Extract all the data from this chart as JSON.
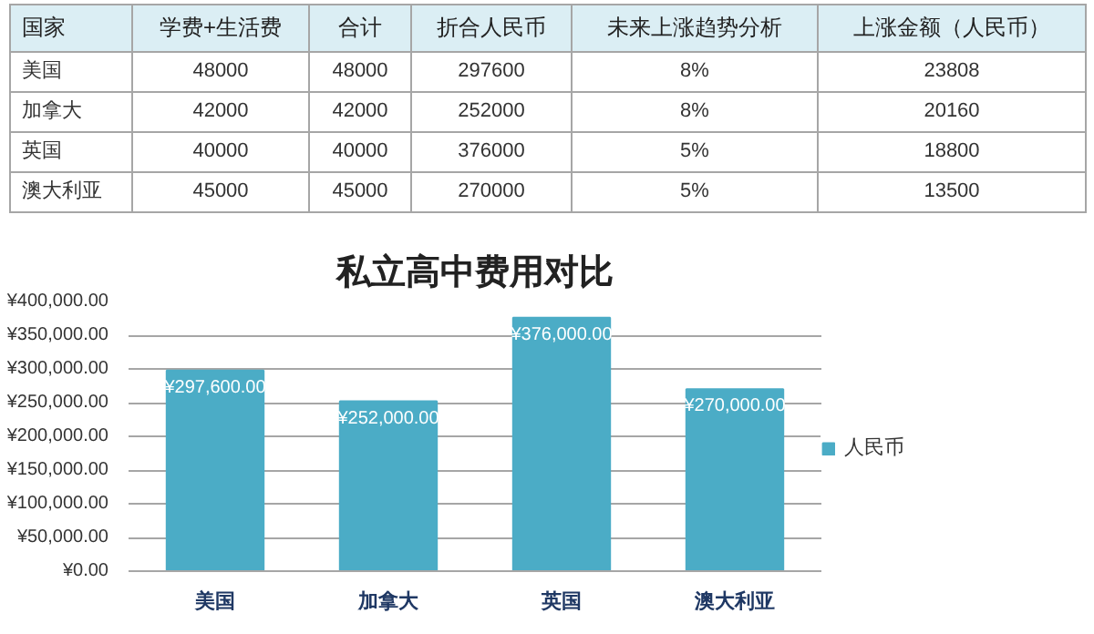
{
  "chart_data": [
    {
      "type": "other",
      "categories": [
        "国家",
        "学费+生活费",
        "合计",
        "折合人民币",
        "未来上涨趋势分析",
        "上涨金额（人民币）"
      ],
      "cell_labels": [
        [
          "美国",
          "48000",
          "48000",
          "297600",
          "8%",
          "23808"
        ],
        [
          "加拿大",
          "42000",
          "42000",
          "252000",
          "8%",
          "20160"
        ],
        [
          "英国",
          "40000",
          "40000",
          "376000",
          "5%",
          "18800"
        ],
        [
          "澳大利亚",
          "45000",
          "45000",
          "270000",
          "5%",
          "13500"
        ]
      ]
    },
    {
      "type": "bar",
      "title": "私立高中费用对比",
      "categories": [
        "美国",
        "加拿大",
        "英国",
        "澳大利亚"
      ],
      "series": [
        {
          "name": "人民币",
          "color": "#4bacc6",
          "values": [
            297600,
            252000,
            376000,
            270000
          ],
          "value_labels": [
            "¥297,600.00",
            "¥252,000.00",
            "¥376,000.00",
            "¥270,000.00"
          ]
        }
      ],
      "ylim": [
        0,
        400000
      ],
      "yticks": [
        {
          "value": 0,
          "label": "¥0.00"
        },
        {
          "value": 50000,
          "label": "¥50,000.00"
        },
        {
          "value": 100000,
          "label": "¥100,000.00"
        },
        {
          "value": 150000,
          "label": "¥150,000.00"
        },
        {
          "value": 200000,
          "label": "¥200,000.00"
        },
        {
          "value": 250000,
          "label": "¥250,000.00"
        },
        {
          "value": 300000,
          "label": "¥300,000.00"
        },
        {
          "value": 350000,
          "label": "¥350,000.00"
        },
        {
          "value": 400000,
          "label": "¥400,000.00"
        }
      ],
      "grid": "y",
      "legend": "right"
    }
  ]
}
